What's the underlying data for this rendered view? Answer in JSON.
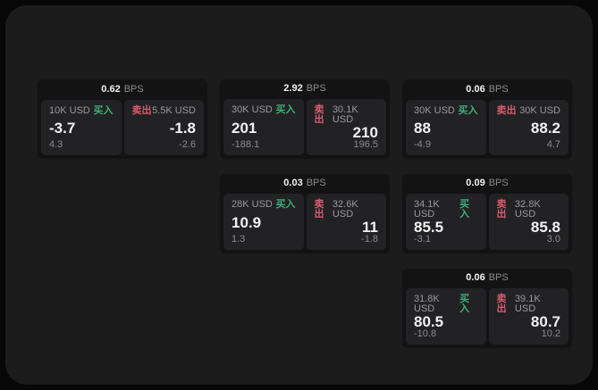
{
  "labels": {
    "bps_unit": "BPS",
    "buy": "买入",
    "sell": "卖出"
  },
  "colors": {
    "buy_accent": "#3fae7a",
    "sell_accent": "#d85c6e",
    "panel_bg": "#1c1c1d",
    "card_bg": "#131314",
    "subcard_bg": "#222224",
    "page_bg": "#070707"
  },
  "cards": [
    {
      "bps": "0.62",
      "col": "1",
      "row": "1",
      "buy": {
        "size": "10K USD",
        "price": "-3.7",
        "change": "4.3"
      },
      "sell": {
        "size": "5.5K USD",
        "price": "-1.8",
        "change": "-2.6"
      }
    },
    {
      "bps": "2.92",
      "col": "2",
      "row": "1",
      "buy": {
        "size": "30K USD",
        "price": "201",
        "change": "-188.1"
      },
      "sell": {
        "size": "30.1K USD",
        "price": "210",
        "change": "196.5"
      }
    },
    {
      "bps": "0.06",
      "col": "3",
      "row": "1",
      "buy": {
        "size": "30K USD",
        "price": "88",
        "change": "-4.9"
      },
      "sell": {
        "size": "30K USD",
        "price": "88.2",
        "change": "4.7"
      }
    },
    {
      "bps": "0.03",
      "col": "2",
      "row": "2",
      "buy": {
        "size": "28K USD",
        "price": "10.9",
        "change": "1.3"
      },
      "sell": {
        "size": "32.6K USD",
        "price": "11",
        "change": "-1.8"
      }
    },
    {
      "bps": "0.09",
      "col": "3",
      "row": "2",
      "buy": {
        "size": "34.1K USD",
        "price": "85.5",
        "change": "-3.1"
      },
      "sell": {
        "size": "32.8K USD",
        "price": "85.8",
        "change": "3.0"
      }
    },
    {
      "bps": "0.06",
      "col": "3",
      "row": "3",
      "buy": {
        "size": "31.8K USD",
        "price": "80.5",
        "change": "-10.8"
      },
      "sell": {
        "size": "39.1K USD",
        "price": "80.7",
        "change": "10.2"
      }
    }
  ]
}
